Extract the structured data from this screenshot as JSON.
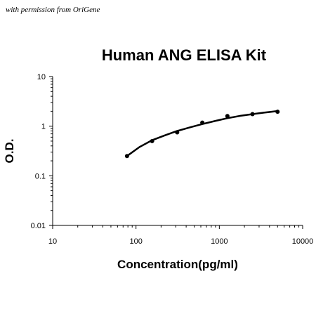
{
  "watermark": "with permission from OriGene",
  "chart_data": {
    "type": "scatter",
    "title": "Human ANG ELISA Kit",
    "xlabel": "Concentration(pg/ml)",
    "ylabel": "O.D.",
    "xscale": "log",
    "yscale": "log",
    "xlim": [
      10,
      10000
    ],
    "ylim": [
      0.01,
      10
    ],
    "x_ticks": [
      10,
      100,
      1000,
      10000
    ],
    "x_tick_labels": [
      "10",
      "100",
      "1000",
      "10000"
    ],
    "y_ticks": [
      0.01,
      0.1,
      1,
      10
    ],
    "y_tick_labels": [
      "0.01",
      "0.1",
      "1",
      "10"
    ],
    "grid": false,
    "legend": "none",
    "series": [
      {
        "points": [
          {
            "x": 78,
            "y": 0.25
          },
          {
            "x": 156,
            "y": 0.5
          },
          {
            "x": 312,
            "y": 0.75
          },
          {
            "x": 625,
            "y": 1.18
          },
          {
            "x": 1250,
            "y": 1.6
          },
          {
            "x": 2500,
            "y": 1.75
          },
          {
            "x": 5000,
            "y": 1.95
          }
        ],
        "fit_curve": [
          {
            "x": 78,
            "y": 0.25
          },
          {
            "x": 110,
            "y": 0.38
          },
          {
            "x": 156,
            "y": 0.52
          },
          {
            "x": 220,
            "y": 0.65
          },
          {
            "x": 312,
            "y": 0.8
          },
          {
            "x": 450,
            "y": 0.95
          },
          {
            "x": 625,
            "y": 1.1
          },
          {
            "x": 900,
            "y": 1.28
          },
          {
            "x": 1250,
            "y": 1.45
          },
          {
            "x": 1800,
            "y": 1.62
          },
          {
            "x": 2500,
            "y": 1.75
          },
          {
            "x": 3500,
            "y": 1.88
          },
          {
            "x": 5000,
            "y": 2.02
          }
        ],
        "color": "#000000"
      }
    ]
  }
}
